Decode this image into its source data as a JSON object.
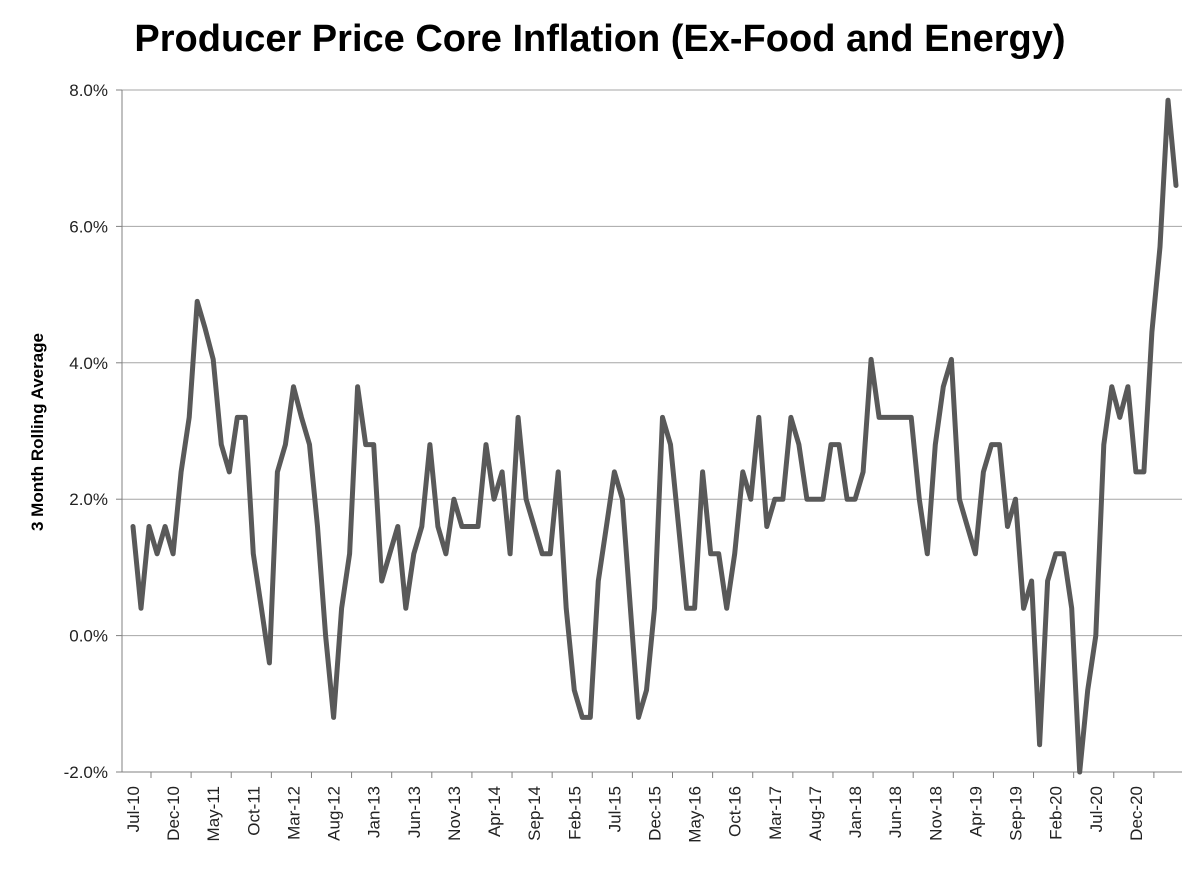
{
  "chart_data": {
    "type": "line",
    "title": "Producer Price Core Inflation (Ex-Food and Energy)",
    "xlabel": "",
    "ylabel": "3 Month Rolling Average",
    "ylim": [
      -2.0,
      8.0
    ],
    "y_ticks": [
      "-2.0%",
      "0.0%",
      "2.0%",
      "4.0%",
      "6.0%",
      "8.0%"
    ],
    "y_tick_values": [
      -2,
      0,
      2,
      4,
      6,
      8
    ],
    "x_tick_labels": [
      "Jul-10",
      "Dec-10",
      "May-11",
      "Oct-11",
      "Mar-12",
      "Aug-12",
      "Jan-13",
      "Jun-13",
      "Nov-13",
      "Apr-14",
      "Sep-14",
      "Feb-15",
      "Jul-15",
      "Dec-15",
      "May-16",
      "Oct-16",
      "Mar-17",
      "Aug-17",
      "Jan-18",
      "Jun-18",
      "Nov-18",
      "Apr-19",
      "Sep-19",
      "Feb-20",
      "Jul-20",
      "Dec-20"
    ],
    "grid": true,
    "line_color": "#595959",
    "series": [
      {
        "x": [
          "Jul-10",
          "Aug-10",
          "Sep-10",
          "Oct-10",
          "Nov-10",
          "Dec-10",
          "Jan-11",
          "Feb-11",
          "Mar-11",
          "Apr-11",
          "May-11",
          "Jun-11",
          "Jul-11",
          "Aug-11",
          "Sep-11",
          "Oct-11",
          "Nov-11",
          "Dec-11",
          "Jan-12",
          "Feb-12",
          "Mar-12",
          "Apr-12",
          "May-12",
          "Jun-12",
          "Jul-12",
          "Aug-12",
          "Sep-12",
          "Oct-12",
          "Nov-12",
          "Dec-12",
          "Jan-13",
          "Feb-13",
          "Mar-13",
          "Apr-13",
          "May-13",
          "Jun-13",
          "Jul-13",
          "Aug-13",
          "Sep-13",
          "Oct-13",
          "Nov-13",
          "Dec-13",
          "Jan-14",
          "Feb-14",
          "Mar-14",
          "Apr-14",
          "May-14",
          "Jun-14",
          "Jul-14",
          "Aug-14",
          "Sep-14",
          "Oct-14",
          "Nov-14",
          "Dec-14",
          "Jan-15",
          "Feb-15",
          "Mar-15",
          "Apr-15",
          "May-15",
          "Jun-15",
          "Jul-15",
          "Aug-15",
          "Sep-15",
          "Oct-15",
          "Nov-15",
          "Dec-15",
          "Jan-16",
          "Feb-16",
          "Mar-16",
          "Apr-16",
          "May-16",
          "Jun-16",
          "Jul-16",
          "Aug-16",
          "Sep-16",
          "Oct-16",
          "Nov-16",
          "Dec-16",
          "Jan-17",
          "Feb-17",
          "Mar-17",
          "Apr-17",
          "May-17",
          "Jun-17",
          "Jul-17",
          "Aug-17",
          "Sep-17",
          "Oct-17",
          "Nov-17",
          "Dec-17",
          "Jan-18",
          "Feb-18",
          "Mar-18",
          "Apr-18",
          "May-18",
          "Jun-18",
          "Jul-18",
          "Aug-18",
          "Sep-18",
          "Oct-18",
          "Nov-18",
          "Dec-18",
          "Jan-19",
          "Feb-19",
          "Mar-19",
          "Apr-19",
          "May-19",
          "Jun-19",
          "Jul-19",
          "Aug-19",
          "Sep-19",
          "Oct-19",
          "Nov-19",
          "Dec-19",
          "Jan-20",
          "Feb-20",
          "Mar-20",
          "Apr-20",
          "May-20",
          "Jun-20",
          "Jul-20",
          "Aug-20",
          "Sep-20",
          "Oct-20",
          "Nov-20",
          "Dec-20",
          "Jan-21",
          "Feb-21",
          "Mar-21",
          "Apr-21",
          "May-21"
        ],
        "values": [
          1.6,
          0.4,
          1.6,
          1.2,
          1.6,
          1.2,
          2.4,
          3.2,
          4.9,
          4.5,
          4.05,
          2.8,
          2.4,
          3.2,
          3.2,
          1.2,
          0.4,
          -0.4,
          2.4,
          2.8,
          3.65,
          3.2,
          2.8,
          1.6,
          0.0,
          -1.2,
          0.4,
          1.2,
          3.65,
          2.8,
          2.8,
          0.8,
          1.2,
          1.6,
          0.4,
          1.2,
          1.6,
          2.8,
          1.6,
          1.2,
          2.0,
          1.6,
          1.6,
          1.6,
          2.8,
          2.0,
          2.4,
          1.2,
          3.2,
          2.0,
          1.6,
          1.2,
          1.2,
          2.4,
          0.4,
          -0.8,
          -1.2,
          -1.2,
          0.8,
          1.6,
          2.4,
          2.0,
          0.4,
          -1.2,
          -0.8,
          0.4,
          3.2,
          2.8,
          1.6,
          0.4,
          0.4,
          2.4,
          1.2,
          1.2,
          0.4,
          1.2,
          2.4,
          2.0,
          3.2,
          1.6,
          2.0,
          2.0,
          3.2,
          2.8,
          2.0,
          2.0,
          2.0,
          2.8,
          2.8,
          2.0,
          2.0,
          2.4,
          4.05,
          3.2,
          3.2,
          3.2,
          3.2,
          3.2,
          2.0,
          1.2,
          2.8,
          3.65,
          4.05,
          2.0,
          1.6,
          1.2,
          2.4,
          2.8,
          2.8,
          1.6,
          2.0,
          0.4,
          0.8,
          -1.6,
          0.8,
          1.2,
          1.2,
          0.4,
          -2.0,
          -0.8,
          0.0,
          2.8,
          3.65,
          3.2,
          3.65,
          2.4,
          2.4,
          4.45,
          5.7,
          7.85,
          6.6
        ]
      }
    ]
  }
}
